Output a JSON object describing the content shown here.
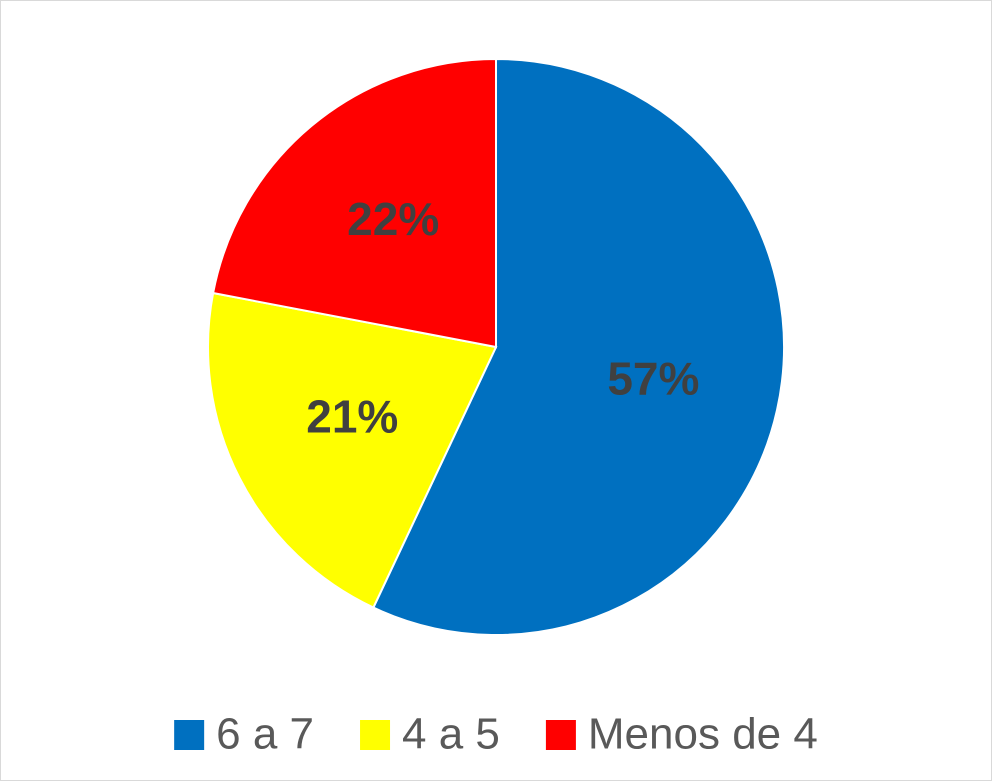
{
  "chart_data": {
    "type": "pie",
    "categories": [
      "6 a 7",
      "4 a 5",
      "Menos de 4"
    ],
    "values": [
      57,
      21,
      22
    ],
    "value_labels": [
      "57%",
      "21%",
      "22%"
    ],
    "colors": [
      "#0070c0",
      "#ffff00",
      "#ff0000"
    ],
    "legend": "bottom"
  }
}
